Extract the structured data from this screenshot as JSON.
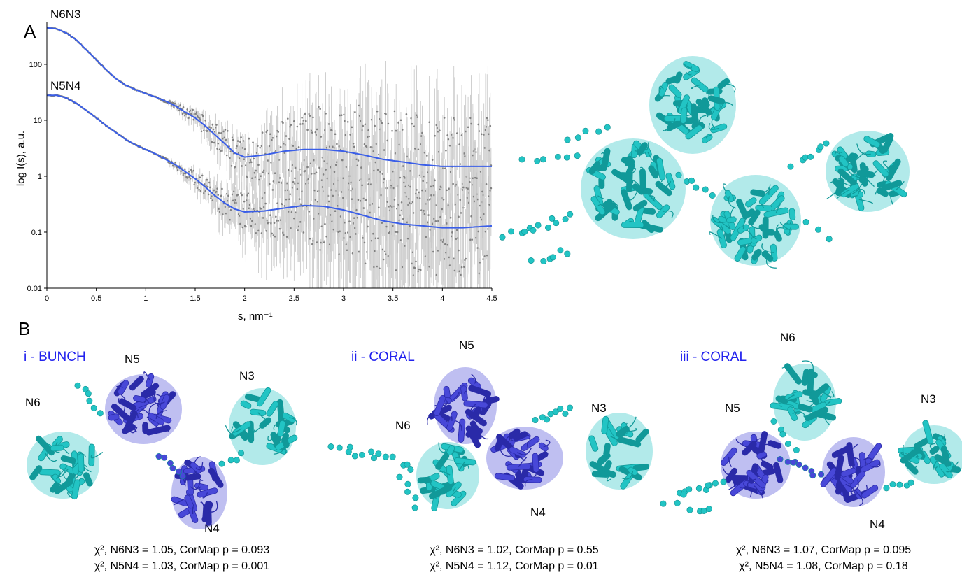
{
  "panel_a": {
    "letter": "A",
    "curve_labels": [
      "N6N3",
      "N5N4"
    ],
    "chart_data": {
      "type": "scatter",
      "title": "",
      "xlabel": "s, nm⁻¹",
      "ylabel": "log I(s), a.u.",
      "xlim": [
        0,
        4.5
      ],
      "ylim": [
        0.01,
        500
      ],
      "y_scale": "log",
      "x_ticks": [
        "0",
        "0.5",
        "1",
        "1.5",
        "2",
        "2.5",
        "3",
        "3.5",
        "4",
        "4.5"
      ],
      "y_ticks": [
        "0.01",
        "0.1",
        "1",
        "10",
        "100"
      ],
      "grid": false,
      "series": [
        {
          "name": "N6N3",
          "x": [
            0,
            0.1,
            0.2,
            0.3,
            0.4,
            0.5,
            0.6,
            0.7,
            0.8,
            0.9,
            1.0,
            1.1,
            1.2,
            1.3,
            1.4,
            1.5,
            1.6,
            1.7,
            1.8,
            1.9,
            2.0,
            2.2,
            2.4,
            2.6,
            2.8,
            3.0,
            3.2,
            3.4,
            3.6,
            3.8,
            4.0,
            4.2,
            4.5
          ],
          "y": [
            450,
            430,
            360,
            270,
            180,
            120,
            80,
            55,
            42,
            35,
            30,
            26,
            22,
            18,
            14,
            11,
            8,
            5.5,
            3.8,
            2.6,
            2.2,
            2.4,
            2.8,
            3.0,
            3.0,
            2.8,
            2.4,
            2.0,
            1.8,
            1.6,
            1.5,
            1.5,
            1.5
          ]
        },
        {
          "name": "N5N4",
          "x": [
            0,
            0.1,
            0.2,
            0.3,
            0.4,
            0.5,
            0.6,
            0.7,
            0.8,
            0.9,
            1.0,
            1.1,
            1.2,
            1.3,
            1.4,
            1.5,
            1.6,
            1.7,
            1.8,
            1.9,
            2.0,
            2.2,
            2.4,
            2.6,
            2.8,
            3.0,
            3.2,
            3.4,
            3.6,
            3.8,
            4.0,
            4.2,
            4.5
          ],
          "y": [
            28,
            28,
            25,
            20,
            15,
            11,
            8,
            6,
            4.5,
            3.6,
            3.0,
            2.5,
            2.0,
            1.6,
            1.2,
            0.9,
            0.65,
            0.45,
            0.33,
            0.26,
            0.23,
            0.24,
            0.27,
            0.3,
            0.29,
            0.25,
            0.2,
            0.16,
            0.14,
            0.13,
            0.12,
            0.12,
            0.13
          ]
        }
      ]
    }
  },
  "panel_b": {
    "letter": "B",
    "models": [
      {
        "title": "i - BUNCH",
        "labels": [
          "N6",
          "N5",
          "N3",
          "N4"
        ],
        "stats": [
          "χ², N6N3 = 1.05, CorMap p = 0.093",
          "χ², N5N4 = 1.03, CorMap p = 0.001"
        ]
      },
      {
        "title": "ii - CORAL",
        "labels": [
          "N5",
          "N6",
          "N3",
          "N4"
        ],
        "stats": [
          "χ², N6N3 = 1.02, CorMap p = 0.55",
          "χ², N5N4 = 1.12, CorMap p = 0.01"
        ]
      },
      {
        "title": "iii - CORAL",
        "labels": [
          "N6",
          "N5",
          "N3",
          "N4"
        ],
        "stats": [
          "χ², N6N3 = 1.07, CorMap p = 0.095",
          "χ², N5N4 = 1.08, CorMap p = 0.18"
        ]
      }
    ]
  },
  "colors": {
    "cyan": "#22c4c4",
    "dark_cyan": "#119999",
    "blue": "#4848d8",
    "fit_line": "#3a5ee8",
    "data_point": "#808080",
    "title_blue": "#2222ee"
  },
  "icon_names": [
    "protein-structure-icon"
  ]
}
